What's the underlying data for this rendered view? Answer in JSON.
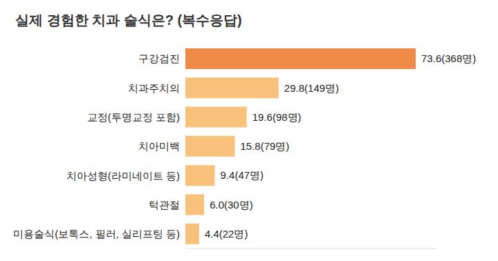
{
  "chart_data": {
    "type": "bar",
    "title": "실제 경험한 치과 술식은? (복수응답)",
    "orientation": "horizontal",
    "categories": [
      "구강검진",
      "치과주치의",
      "교정(투명교정 포함)",
      "치아미백",
      "치아성형(라미네이트 등)",
      "턱관절",
      "미용술식(보톡스, 필러, 실리프팅 등)"
    ],
    "values": [
      73.6,
      29.8,
      19.6,
      15.8,
      9.4,
      6.0,
      4.4
    ],
    "value_labels": [
      "73.6(368명)",
      "29.8(149명)",
      "19.6(98명)",
      "15.8(79명)",
      "9.4(47명)",
      "6.0(30명)",
      "4.4(22명)"
    ],
    "colors": [
      "#f08a48",
      "#f9c27c",
      "#f9c27c",
      "#f9c27c",
      "#f9c27c",
      "#f9c27c",
      "#f9c27c"
    ],
    "xlim": [
      0,
      80
    ],
    "data_labels": true,
    "tick_labels": "y",
    "grid": false
  }
}
